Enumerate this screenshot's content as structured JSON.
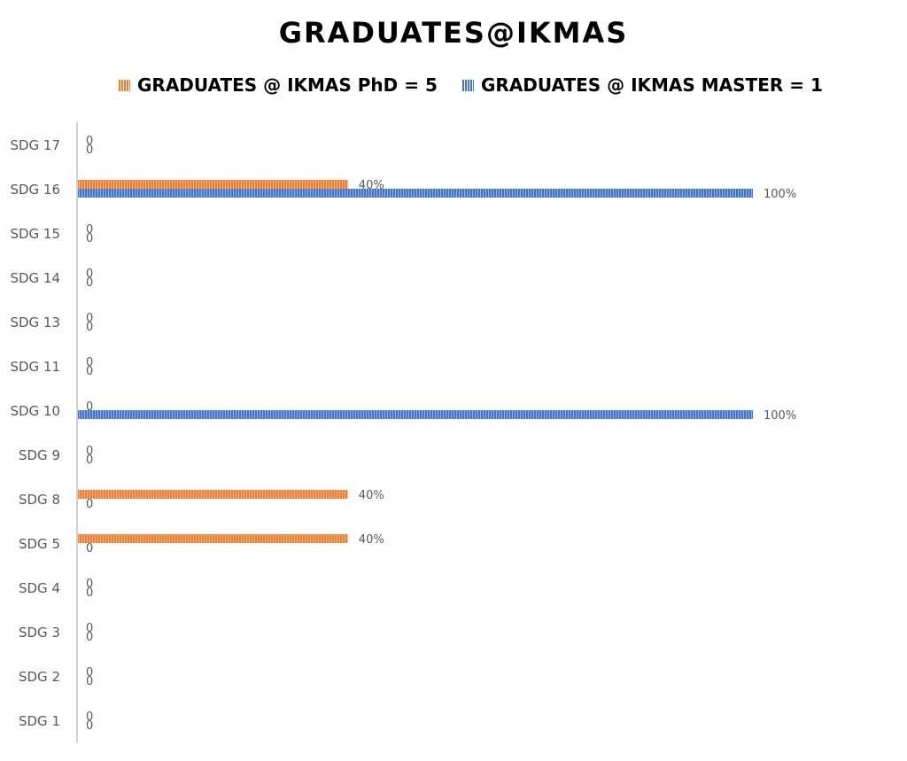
{
  "colors": {
    "phd": "#ED7D31",
    "master": "#4472C4",
    "axis": "#BFBFBF",
    "label": "#595959"
  },
  "chart_data": {
    "type": "bar",
    "orientation": "horizontal",
    "title": "GRADUATES@IKMAS",
    "categories": [
      "SDG 17",
      "SDG 16",
      "SDG 15",
      "SDG 14",
      "SDG 13",
      "SDG 11",
      "SDG 10",
      "SDG 9",
      "SDG 8",
      "SDG 5",
      "SDG 4",
      "SDG 3",
      "SDG 2",
      "SDG 1"
    ],
    "series": [
      {
        "name": "GRADUATES @ IKMAS PhD = 5",
        "values": [
          0,
          0.4,
          0,
          0,
          0,
          0,
          0,
          0,
          0.4,
          0.4,
          0,
          0,
          0,
          0
        ],
        "labels": [
          "0",
          "40%",
          "0",
          "0",
          "0",
          "0",
          "0",
          "0",
          "40%",
          "40%",
          "0",
          "0",
          "0",
          "0"
        ]
      },
      {
        "name": "GRADUATES @ IKMAS MASTER = 1",
        "values": [
          0,
          1,
          0,
          0,
          0,
          0,
          1,
          0,
          0,
          0,
          0,
          0,
          0,
          0
        ],
        "labels": [
          "0",
          "100%",
          "0",
          "0",
          "0",
          "0",
          "100%",
          "0",
          "0",
          "0",
          "0",
          "0",
          "0",
          "0"
        ]
      }
    ],
    "xlim": [
      0,
      1
    ],
    "grid": false,
    "legend_position": "top"
  }
}
